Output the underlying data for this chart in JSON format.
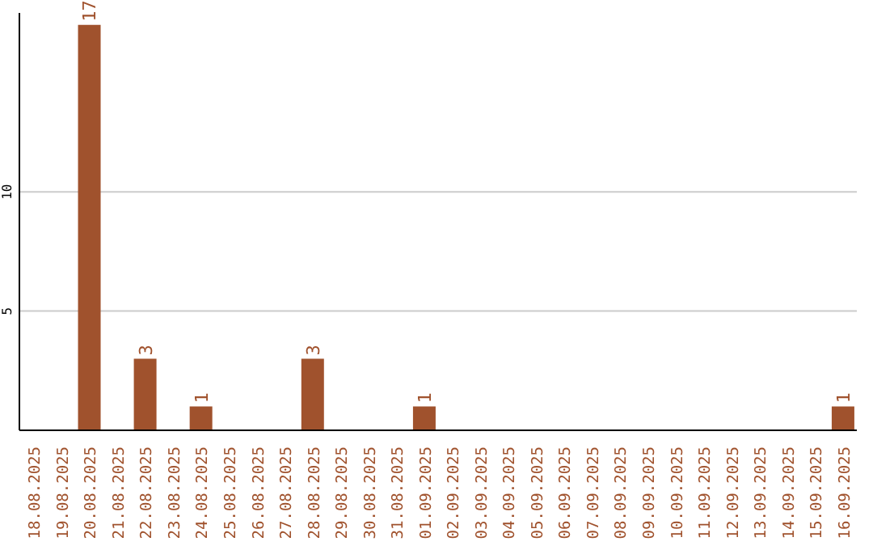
{
  "chart_data": {
    "type": "bar",
    "categories": [
      "18.08.2025",
      "19.08.2025",
      "20.08.2025",
      "21.08.2025",
      "22.08.2025",
      "23.08.2025",
      "24.08.2025",
      "25.08.2025",
      "26.08.2025",
      "27.08.2025",
      "28.08.2025",
      "29.08.2025",
      "30.08.2025",
      "31.08.2025",
      "01.09.2025",
      "02.09.2025",
      "03.09.2025",
      "04.09.2025",
      "05.09.2025",
      "06.09.2025",
      "07.09.2025",
      "08.09.2025",
      "09.09.2025",
      "10.09.2025",
      "11.09.2025",
      "12.09.2025",
      "13.09.2025",
      "14.09.2025",
      "15.09.2025",
      "16.09.2025"
    ],
    "values": [
      0,
      0,
      17,
      0,
      3,
      0,
      1,
      0,
      0,
      0,
      3,
      0,
      0,
      0,
      1,
      0,
      0,
      0,
      0,
      0,
      0,
      0,
      0,
      0,
      0,
      0,
      0,
      0,
      0,
      1
    ],
    "value_labels": [
      null,
      null,
      "17",
      null,
      "3",
      null,
      "1",
      null,
      null,
      null,
      "3",
      null,
      null,
      null,
      "1",
      null,
      null,
      null,
      null,
      null,
      null,
      null,
      null,
      null,
      null,
      null,
      null,
      null,
      null,
      "1"
    ],
    "color": "#a0522d",
    "ylim": [
      0,
      17.5
    ],
    "yticks": [
      5,
      10
    ],
    "grid": "y"
  }
}
